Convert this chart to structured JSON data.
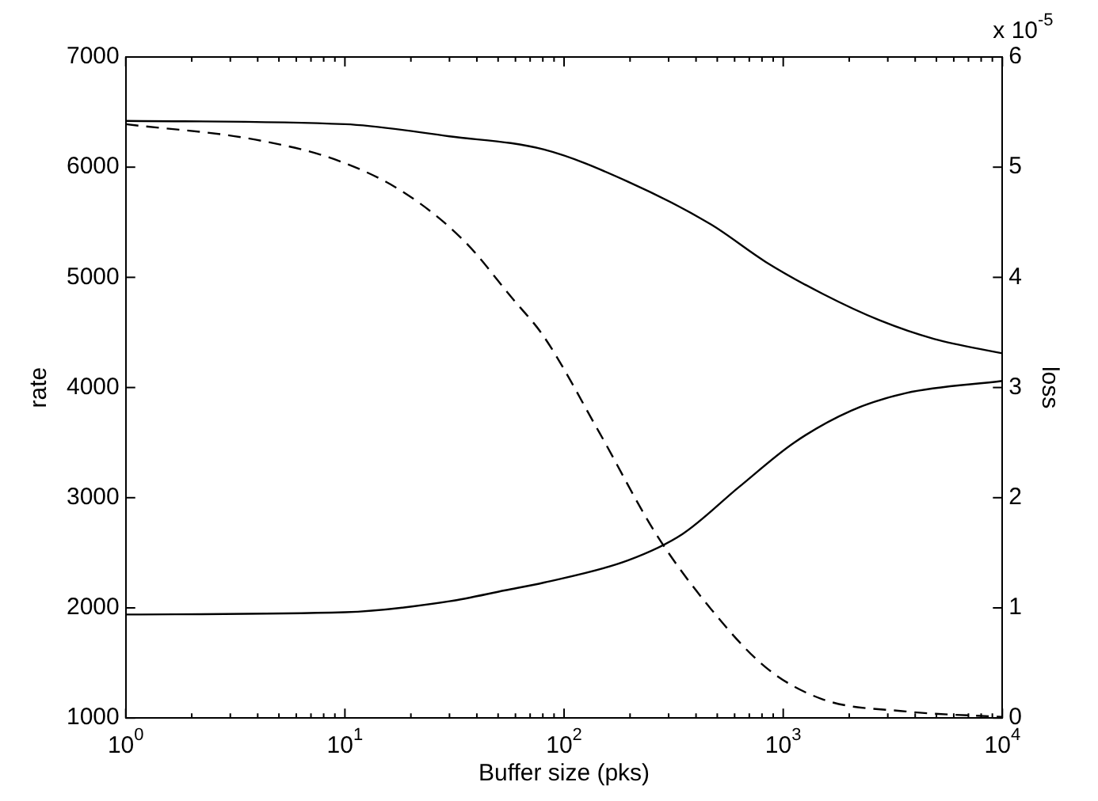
{
  "chart_data": {
    "type": "line",
    "xlabel": "Buffer size (pks)",
    "ylabel": "rate",
    "y2label": "loss",
    "log": "x",
    "grid": false,
    "legend": false,
    "marker": "none",
    "xlim": [
      1,
      10000
    ],
    "xticks": [
      {
        "value": 1,
        "label": "10$^{0}$"
      },
      {
        "value": 2,
        "label": null
      },
      {
        "value": 3,
        "label": null
      },
      {
        "value": 4,
        "label": null
      },
      {
        "value": 5,
        "label": null
      },
      {
        "value": 6,
        "label": null
      },
      {
        "value": 7,
        "label": null
      },
      {
        "value": 8,
        "label": null
      },
      {
        "value": 9,
        "label": null
      },
      {
        "value": 10,
        "label": "10$^{1}$"
      },
      {
        "value": 20,
        "label": null
      },
      {
        "value": 30,
        "label": null
      },
      {
        "value": 40,
        "label": null
      },
      {
        "value": 50,
        "label": null
      },
      {
        "value": 60,
        "label": null
      },
      {
        "value": 70,
        "label": null
      },
      {
        "value": 80,
        "label": null
      },
      {
        "value": 90,
        "label": null
      },
      {
        "value": 100,
        "label": "10$^{2}$"
      },
      {
        "value": 200,
        "label": null
      },
      {
        "value": 300,
        "label": null
      },
      {
        "value": 400,
        "label": null
      },
      {
        "value": 500,
        "label": null
      },
      {
        "value": 600,
        "label": null
      },
      {
        "value": 700,
        "label": null
      },
      {
        "value": 800,
        "label": null
      },
      {
        "value": 900,
        "label": null
      },
      {
        "value": 1000,
        "label": "10$^{3}$"
      },
      {
        "value": 2000,
        "label": null
      },
      {
        "value": 3000,
        "label": null
      },
      {
        "value": 4000,
        "label": null
      },
      {
        "value": 5000,
        "label": null
      },
      {
        "value": 6000,
        "label": null
      },
      {
        "value": 7000,
        "label": null
      },
      {
        "value": 8000,
        "label": null
      },
      {
        "value": 9000,
        "label": null
      },
      {
        "value": 10000,
        "label": "10$^{4}$"
      }
    ],
    "ylim": [
      1000,
      7000
    ],
    "yticks": [
      1000,
      2000,
      3000,
      4000,
      5000,
      6000,
      7000
    ],
    "y2lim": [
      0,
      6
    ],
    "y2ticks": [
      0,
      1,
      2,
      3,
      4,
      5,
      6
    ],
    "annotations": [
      "x 10$^{-5}$"
    ],
    "series": [
      {
        "color": "#000000",
        "line_style": "solid",
        "x": [
          1,
          10,
          30,
          81,
          195,
          468,
          832,
          1514,
          2754,
          4898,
          10000
        ],
        "values": [
          6420,
          6390,
          6280,
          6160,
          5870,
          5480,
          5140,
          4850,
          4610,
          4440,
          4310
        ]
      },
      {
        "color": "#000000",
        "line_style": "solid",
        "x": [
          1,
          10,
          30,
          54,
          81,
          195,
          347,
          631,
          1122,
          2042,
          3631,
          10000
        ],
        "values": [
          1940,
          1960,
          2060,
          2160,
          2230,
          2430,
          2670,
          3100,
          3500,
          3790,
          3950,
          4060
        ]
      },
      {
        "color": "#000000",
        "line_style": "dashed",
        "axis": "y2",
        "x": [
          1,
          3.9,
          9.3,
          18.6,
          35,
          58,
          81,
          145,
          263,
          468,
          832,
          1514,
          3631,
          10000
        ],
        "values": [
          5.39,
          5.25,
          5.06,
          4.77,
          4.33,
          3.81,
          3.46,
          2.59,
          1.67,
          0.99,
          0.46,
          0.17,
          0.06,
          0.01
        ]
      }
    ]
  }
}
